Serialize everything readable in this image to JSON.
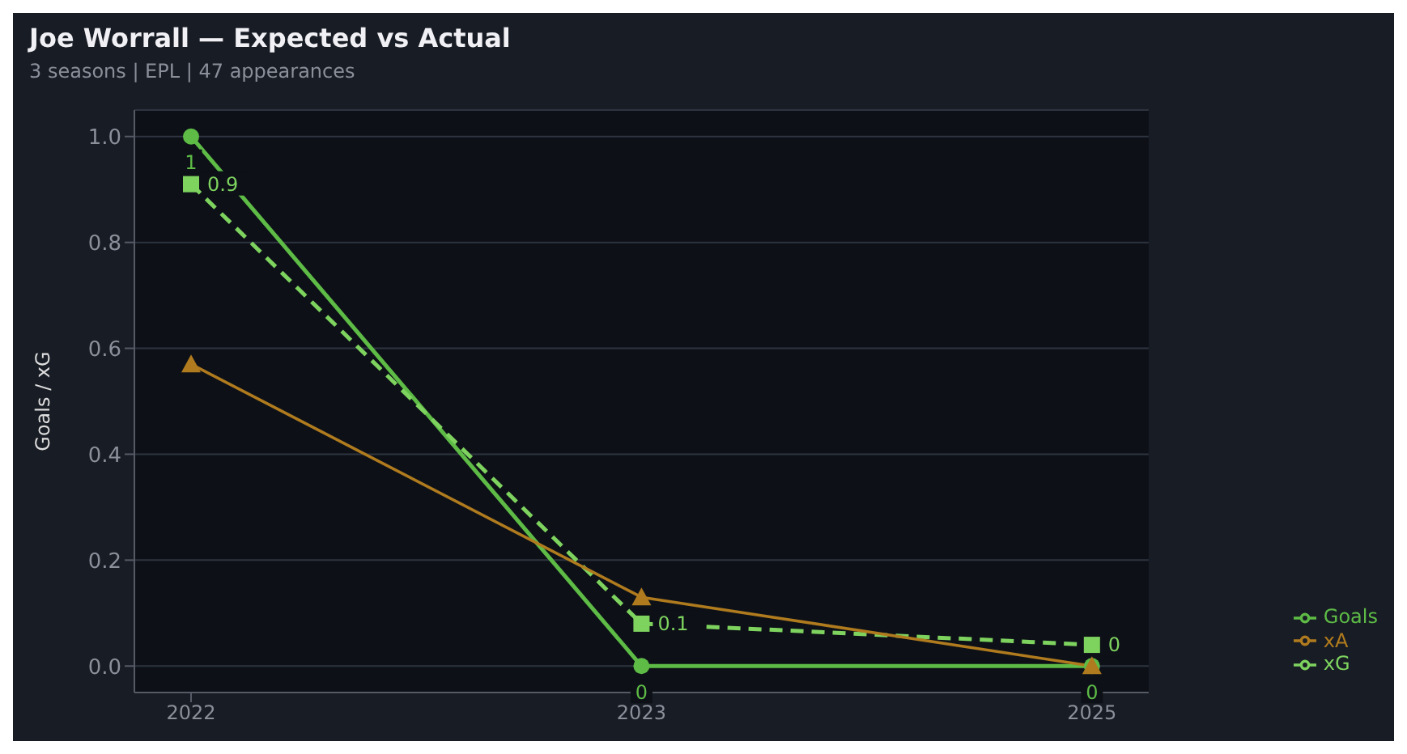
{
  "chart_data": {
    "type": "line",
    "title": "Joe Worrall — Expected vs Actual",
    "subtitle": "3 seasons | EPL | 47 appearances",
    "ylabel": "Goals / xG",
    "categories": [
      "2022",
      "2023",
      "2025"
    ],
    "series": [
      {
        "name": "Goals",
        "color": "#5dbb46",
        "values": [
          1,
          0,
          0
        ],
        "marker": "circle",
        "line_style": "solid",
        "value_labels": [
          "1",
          "0",
          "0"
        ]
      },
      {
        "name": "xG",
        "color": "#7ed35f",
        "values": [
          0.91,
          0.08,
          0.04
        ],
        "marker": "square",
        "line_style": "dashed",
        "value_labels": [
          "0.9",
          "0.1",
          "0"
        ]
      },
      {
        "name": "xA",
        "color": "#b07b1e",
        "values": [
          0.57,
          0.13,
          0.0
        ],
        "marker": "triangle",
        "line_style": "solid"
      }
    ],
    "ylim": [
      -0.05,
      1.05
    ],
    "yticks": [
      {
        "value": 0,
        "label": "0.0"
      },
      {
        "value": 0.2,
        "label": "0.2"
      },
      {
        "value": 0.4,
        "label": "0.4"
      },
      {
        "value": 0.6,
        "label": "0.6"
      },
      {
        "value": 0.8,
        "label": "0.8"
      },
      {
        "value": 1,
        "label": "1.0"
      }
    ],
    "grid": "y",
    "legend": "bottom right"
  }
}
